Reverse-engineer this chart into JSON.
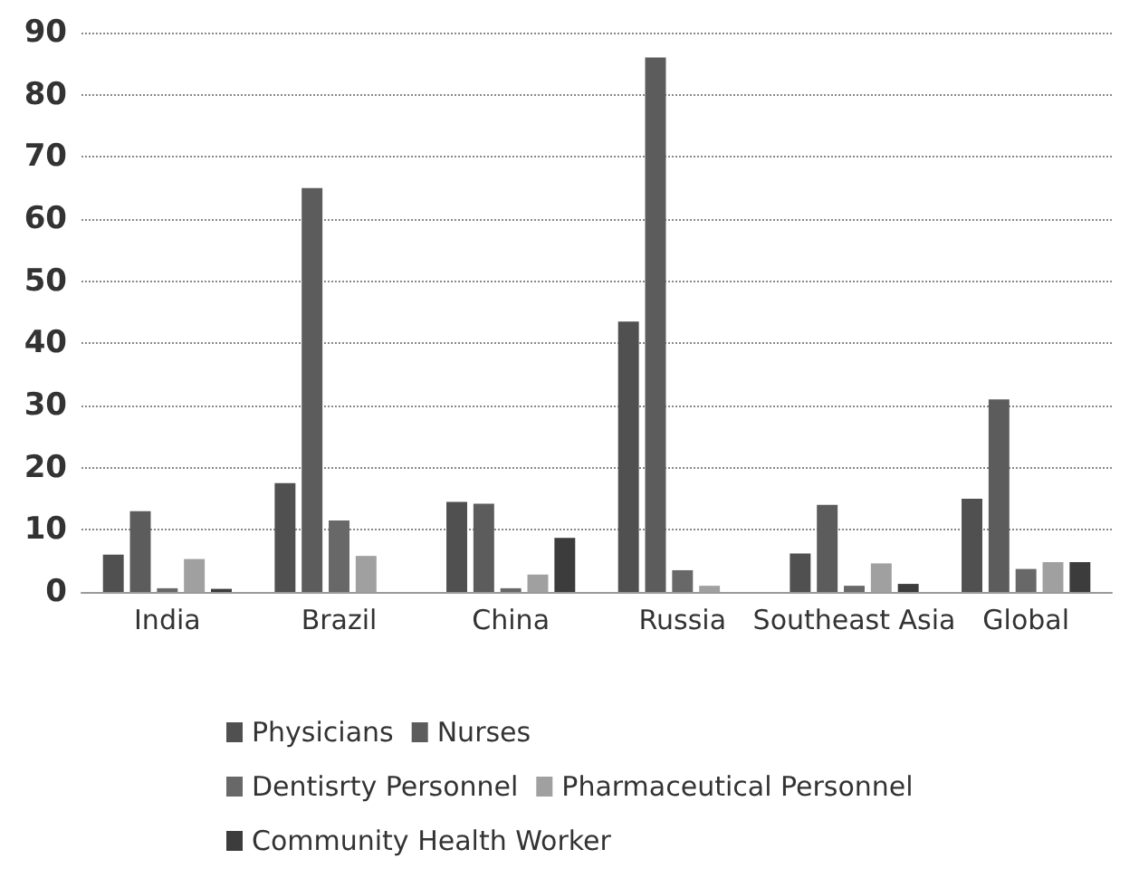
{
  "chart_data": {
    "type": "bar",
    "categories": [
      "India",
      "Brazil",
      "China",
      "Russia",
      "Southeast Asia",
      "Global"
    ],
    "series": [
      {
        "name": "Physicians",
        "color": "#505050",
        "values": [
          6,
          17.5,
          14.5,
          43.5,
          6.2,
          15
        ]
      },
      {
        "name": "Nurses",
        "color": "#5c5c5c",
        "values": [
          13,
          65,
          14.2,
          86,
          14,
          31
        ]
      },
      {
        "name": "Dentisrty Personnel",
        "color": "#686868",
        "values": [
          0.6,
          11.5,
          0.6,
          3.5,
          1,
          3.7
        ]
      },
      {
        "name": "Pharmaceutical Personnel",
        "color": "#a0a0a0",
        "values": [
          5.3,
          5.8,
          2.8,
          1,
          4.6,
          4.8
        ]
      },
      {
        "name": "Community Health Worker",
        "color": "#3c3c3c",
        "values": [
          0.5,
          null,
          8.7,
          null,
          1.3,
          4.8
        ]
      }
    ],
    "ylim": [
      0,
      90
    ],
    "yticks": [
      0,
      10,
      20,
      30,
      40,
      50,
      60,
      70,
      80,
      90
    ],
    "grid": "y",
    "legend": "bottom"
  }
}
